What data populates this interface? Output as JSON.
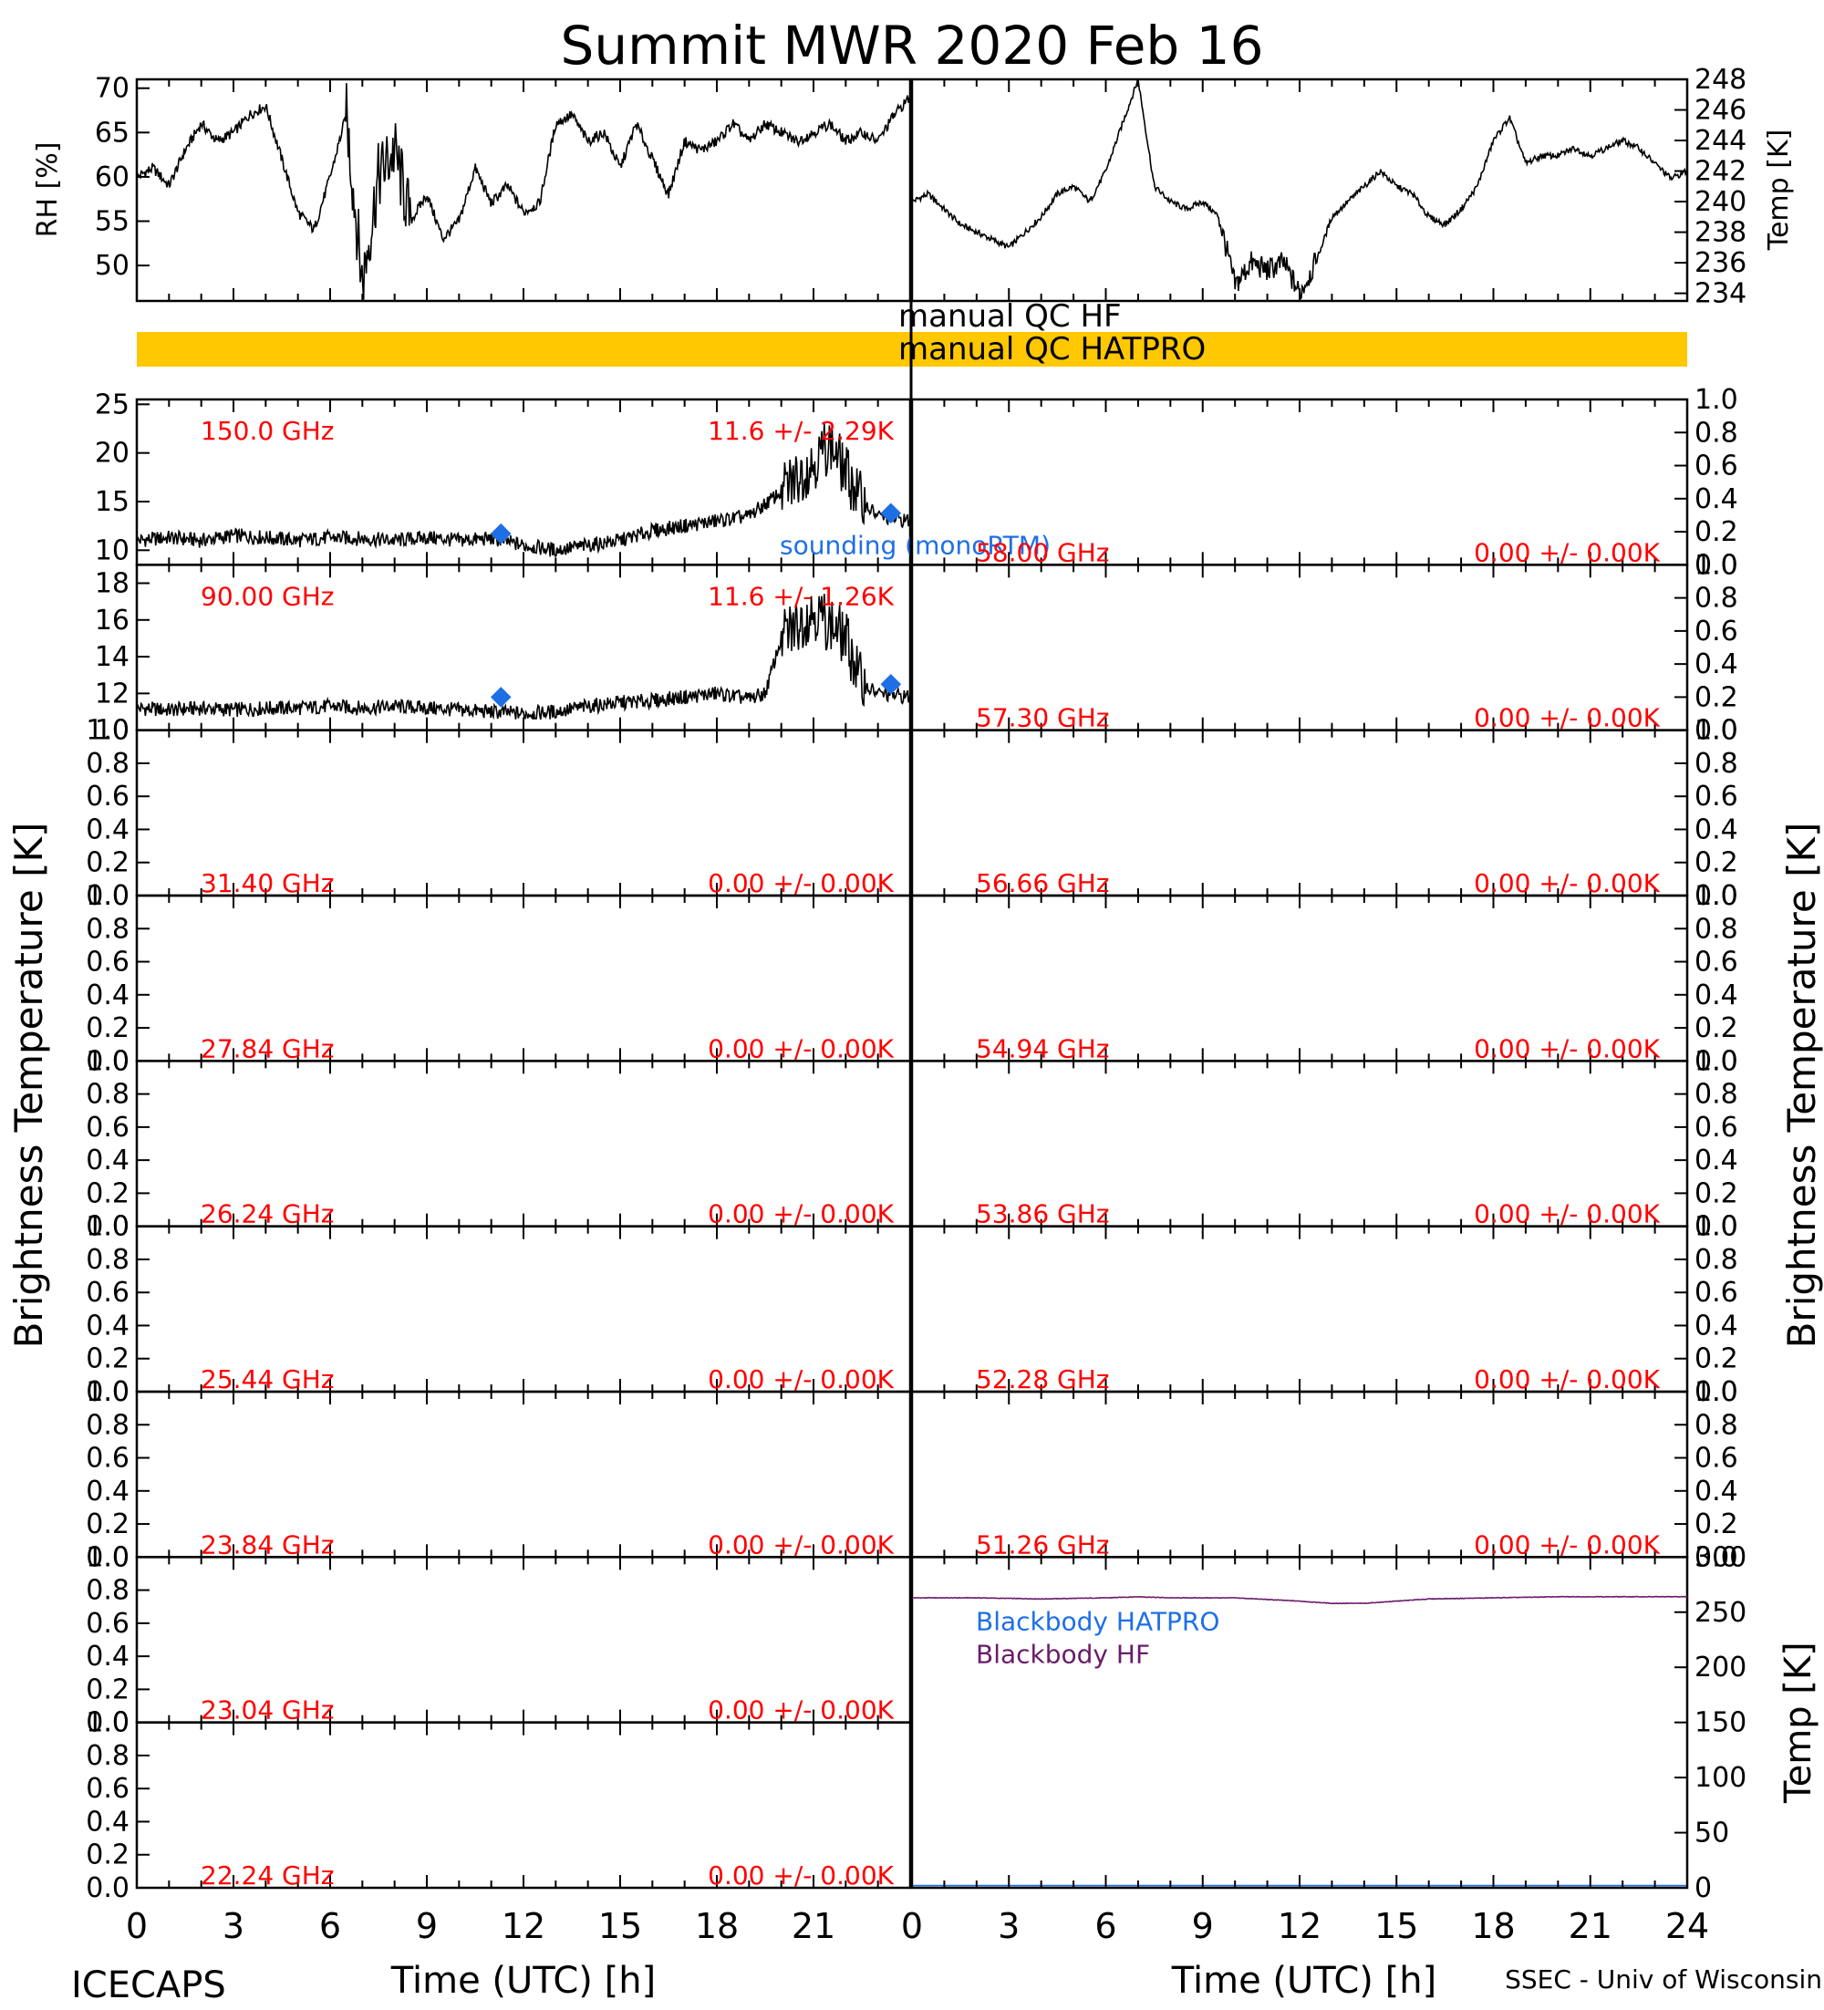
{
  "title": "Summit MWR 2020 Feb 16",
  "footer": {
    "left": "ICECAPS",
    "right": "SSEC - Univ of Wisconsin",
    "xlabel_left": "Time (UTC) [h]",
    "xlabel_right": "Time (UTC) [h]"
  },
  "ylabel_left": "Brightness Temperature [K]",
  "ylabel_right": "Brightness Temperature [K]",
  "qc": {
    "hf_label": "manual QC HF",
    "hatpro_label": "manual QC HATPRO",
    "hatpro_color": "#ffc800"
  },
  "colors": {
    "data": "#000000",
    "label": "#ff0000",
    "sounding": "#1e6fe6",
    "bb_hf": "#6a1b6a"
  },
  "chart_data": [
    {
      "type": "line",
      "panel": "RH",
      "ylabel": "RH [%]",
      "xlim": [
        0,
        24
      ],
      "ylim": [
        46,
        71
      ],
      "yticks": [
        50,
        55,
        60,
        65,
        70
      ],
      "x": [
        0,
        0.5,
        1,
        1.5,
        2,
        2.5,
        3,
        3.5,
        4,
        4.5,
        5,
        5.5,
        6,
        6.5,
        7,
        7.5,
        8,
        8.5,
        9,
        9.5,
        10,
        10.5,
        11,
        11.5,
        12,
        12.5,
        13,
        13.5,
        14,
        14.5,
        15,
        15.5,
        16,
        16.5,
        17,
        17.5,
        18,
        18.5,
        19,
        19.5,
        20,
        20.5,
        21,
        21.5,
        22,
        22.5,
        23,
        23.5,
        24
      ],
      "y": [
        60,
        61,
        59,
        63,
        66,
        64,
        65,
        67,
        68,
        62,
        56,
        54,
        60,
        67,
        48,
        60,
        63,
        55,
        58,
        53,
        55,
        61,
        57,
        59,
        56,
        57,
        66,
        67,
        64,
        65,
        61,
        66,
        62,
        58,
        64,
        63,
        64,
        66,
        64,
        66,
        65,
        64,
        65,
        66,
        64,
        65,
        64,
        67,
        69
      ]
    },
    {
      "type": "line",
      "panel": "Temp",
      "ylabel": "Temp [K]",
      "xlim": [
        0,
        24
      ],
      "ylim": [
        233.5,
        248
      ],
      "yticks": [
        234,
        236,
        238,
        240,
        242,
        244,
        246,
        248
      ],
      "x": [
        0,
        0.5,
        1,
        1.5,
        2,
        2.5,
        3,
        3.5,
        4,
        4.5,
        5,
        5.5,
        6,
        6.5,
        7,
        7.5,
        8,
        8.5,
        9,
        9.5,
        10,
        10.5,
        11,
        11.5,
        12,
        12.5,
        13,
        13.5,
        14,
        14.5,
        15,
        15.5,
        16,
        16.5,
        17,
        17.5,
        18,
        18.5,
        19,
        19.5,
        20,
        20.5,
        21,
        21.5,
        22,
        22.5,
        23,
        23.5,
        24
      ],
      "y": [
        240,
        240.5,
        239.5,
        238.5,
        238,
        237.5,
        237,
        238,
        239,
        240.5,
        241,
        240,
        242,
        245,
        248,
        241,
        240,
        239.5,
        240,
        239,
        234.5,
        236,
        235.5,
        236,
        234,
        236,
        239,
        240,
        241,
        242,
        241,
        240.5,
        239,
        238.5,
        239.5,
        241,
        244,
        245.5,
        242.5,
        243,
        243,
        243.5,
        243,
        243.5,
        244,
        243.5,
        242.5,
        241.5,
        242
      ]
    },
    {
      "type": "line",
      "panel": "Tb",
      "freq": "150.0 GHz",
      "stat": "11.6 +/- 2.29K",
      "xlim": [
        0,
        24
      ],
      "ylim": [
        8.5,
        25.5
      ],
      "yticks": [
        10,
        15,
        20,
        25
      ],
      "x": [
        0,
        1,
        2,
        3,
        4,
        5,
        6,
        7,
        8,
        9,
        10,
        11,
        12,
        13,
        14,
        15,
        16,
        17,
        18,
        19,
        20,
        21,
        21.5,
        22,
        22.5,
        23,
        24
      ],
      "y": [
        11,
        11.3,
        11,
        11.5,
        11.3,
        11,
        11.3,
        11.2,
        11,
        11.3,
        11,
        11.2,
        10.5,
        10,
        10.5,
        11,
        12,
        12.5,
        13,
        13.5,
        16,
        19,
        21,
        18,
        15,
        13.5,
        13
      ],
      "sounding": {
        "label": "sounding (monoRTM)",
        "x": [
          11.3,
          23.4
        ],
        "y": [
          11.7,
          13.8
        ]
      }
    },
    {
      "type": "line",
      "panel": "Tb",
      "freq": "90.00 GHz",
      "stat": "11.6 +/- 1.26K",
      "xlim": [
        0,
        24
      ],
      "ylim": [
        10,
        19
      ],
      "yticks": [
        10,
        12,
        14,
        16,
        18
      ],
      "x": [
        0,
        1,
        2,
        3,
        4,
        5,
        6,
        7,
        8,
        9,
        10,
        11,
        12,
        13,
        14,
        15,
        16,
        17,
        18,
        19,
        19.5,
        20,
        21,
        22,
        22.5,
        23,
        24
      ],
      "y": [
        11.2,
        11.1,
        11.2,
        11.1,
        11.2,
        11.2,
        11.3,
        11.2,
        11.3,
        11.2,
        11.1,
        11,
        10.9,
        11,
        11.3,
        11.5,
        11.6,
        11.8,
        12,
        11.7,
        12,
        15,
        16.5,
        15,
        12.5,
        12,
        11.8
      ],
      "sounding": {
        "x": [
          11.3,
          23.4
        ],
        "y": [
          11.8,
          12.5
        ]
      }
    },
    {
      "type": "line",
      "panel": "Tb",
      "freq": "31.40 GHz",
      "stat": "0.00 +/- 0.00K",
      "ylim": [
        0,
        1
      ]
    },
    {
      "type": "line",
      "panel": "Tb",
      "freq": "27.84 GHz",
      "stat": "0.00 +/- 0.00K",
      "ylim": [
        0,
        1
      ]
    },
    {
      "type": "line",
      "panel": "Tb",
      "freq": "26.24 GHz",
      "stat": "0.00 +/- 0.00K",
      "ylim": [
        0,
        1
      ]
    },
    {
      "type": "line",
      "panel": "Tb",
      "freq": "25.44 GHz",
      "stat": "0.00 +/- 0.00K",
      "ylim": [
        0,
        1
      ]
    },
    {
      "type": "line",
      "panel": "Tb",
      "freq": "23.84 GHz",
      "stat": "0.00 +/- 0.00K",
      "ylim": [
        0,
        1
      ]
    },
    {
      "type": "line",
      "panel": "Tb",
      "freq": "23.04 GHz",
      "stat": "0.00 +/- 0.00K",
      "ylim": [
        0,
        1
      ]
    },
    {
      "type": "line",
      "panel": "Tb",
      "freq": "22.24 GHz",
      "stat": "0.00 +/- 0.00K",
      "ylim": [
        0,
        1
      ]
    },
    {
      "type": "line",
      "panel": "Tb",
      "freq": "58.00 GHz",
      "stat": "0.00 +/- 0.00K",
      "ylim": [
        0,
        1
      ]
    },
    {
      "type": "line",
      "panel": "Tb",
      "freq": "57.30 GHz",
      "stat": "0.00 +/- 0.00K",
      "ylim": [
        0,
        1
      ]
    },
    {
      "type": "line",
      "panel": "Tb",
      "freq": "56.66 GHz",
      "stat": "0.00 +/- 0.00K",
      "ylim": [
        0,
        1
      ]
    },
    {
      "type": "line",
      "panel": "Tb",
      "freq": "54.94 GHz",
      "stat": "0.00 +/- 0.00K",
      "ylim": [
        0,
        1
      ]
    },
    {
      "type": "line",
      "panel": "Tb",
      "freq": "53.86 GHz",
      "stat": "0.00 +/- 0.00K",
      "ylim": [
        0,
        1
      ]
    },
    {
      "type": "line",
      "panel": "Tb",
      "freq": "52.28 GHz",
      "stat": "0.00 +/- 0.00K",
      "ylim": [
        0,
        1
      ]
    },
    {
      "type": "line",
      "panel": "Tb",
      "freq": "51.26 GHz",
      "stat": "0.00 +/- 0.00K",
      "ylim": [
        0,
        1
      ]
    },
    {
      "type": "line",
      "panel": "Blackbody",
      "ylabel": "Temp [K]",
      "xlim": [
        0,
        24
      ],
      "ylim": [
        0,
        300
      ],
      "yticks": [
        0,
        50,
        100,
        150,
        200,
        250,
        300
      ],
      "series": [
        {
          "name": "Blackbody HATPRO",
          "x": [
            0,
            24
          ],
          "y": [
            2,
            2
          ]
        },
        {
          "name": "Blackbody HF",
          "x": [
            0,
            2,
            4,
            6,
            7,
            8,
            10,
            12,
            13,
            14,
            15,
            16,
            18,
            20,
            22,
            24
          ],
          "y": [
            263,
            263,
            262,
            263,
            264,
            263,
            263,
            260,
            258,
            258,
            260,
            262,
            263,
            264,
            264,
            264
          ]
        }
      ]
    }
  ],
  "xticks": [
    0,
    3,
    6,
    9,
    12,
    15,
    18,
    21,
    24
  ],
  "xtick_labels_left": [
    "0",
    "3",
    "6",
    "9",
    "12",
    "15",
    "18",
    "21"
  ],
  "xtick_labels_right": [
    "0",
    "3",
    "6",
    "9",
    "12",
    "15",
    "18",
    "21",
    "24"
  ],
  "tb_yticks": [
    "0.0",
    "0.2",
    "0.4",
    "0.6",
    "0.8",
    "1.0"
  ]
}
